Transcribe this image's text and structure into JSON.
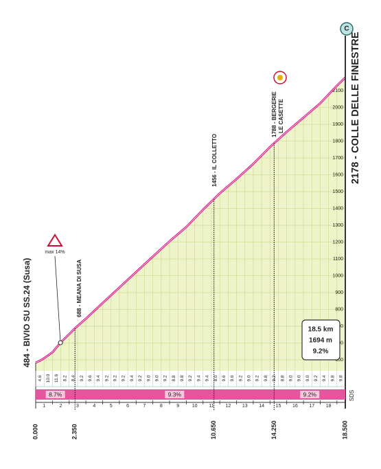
{
  "chart_data": {
    "type": "area",
    "x": [
      0,
      0.25,
      0.5,
      1,
      1.48,
      2.35,
      3,
      4,
      5,
      6,
      7,
      8,
      9,
      10,
      10.65,
      11,
      12,
      13,
      14,
      14.25,
      15,
      16,
      17,
      18,
      18.5
    ],
    "series": [
      {
        "color": "#e0198a",
        "values": [
          484,
          495,
          510,
          545,
          602,
          688,
          745,
          838,
          930,
          1022,
          1114,
          1205,
          1290,
          1393,
          1456,
          1490,
          1575,
          1665,
          1765,
          1788,
          1855,
          1940,
          2025,
          2130,
          2178
        ]
      }
    ],
    "fill": "#eef3c9",
    "xlim": [
      0,
      18.5
    ],
    "xticks": [
      0,
      1,
      2,
      3,
      4,
      5,
      6,
      7,
      8,
      9,
      10,
      11,
      12,
      13,
      14,
      15,
      16,
      17,
      18
    ],
    "ylim": [
      435,
      2200
    ],
    "yticks": [
      500,
      600,
      700,
      800,
      900,
      1000,
      1100,
      1200,
      1300,
      1400,
      1500,
      1600,
      1700,
      1800,
      1900,
      2000,
      2100
    ],
    "waypoints": [
      {
        "label": [
          "484 - BIVIO SU SS.24 (Susa)"
        ],
        "km": {
          "value": 0,
          "label": "0.000"
        }
      },
      {
        "label": [
          "688 - MEANA DI SUSA"
        ],
        "km": {
          "value": 2.35,
          "label": "2.350"
        }
      },
      {
        "label": [
          "1456 - IL COLLETTO"
        ],
        "km": {
          "value": 10.65,
          "label": "10.650"
        }
      },
      {
        "label": [
          "1788 - BERGERIE",
          "LE CASETTE"
        ],
        "km": {
          "value": 14.25,
          "label": "14.250"
        }
      },
      {
        "label": [
          "2178 - COLLE DELLE FINESTRE"
        ],
        "km": {
          "value": 18.5,
          "label": "18.500"
        }
      }
    ],
    "gradients": [
      4.6,
      {
        "value": 10,
        "label": "10.0"
      },
      11.6,
      8.2,
      8.4,
      9.2,
      9.6,
      9.4,
      9.2,
      9.2,
      9.2,
      9.4,
      9.2,
      {
        "value": 9,
        "label": "9.0"
      },
      {
        "value": 9,
        "label": "9.0"
      },
      9.2,
      8.8,
      9.8,
      9.2,
      9.4,
      9.4,
      {
        "value": 8,
        "label": "8.0"
      },
      9.6,
      9.6,
      9.2,
      {
        "value": 9,
        "label": "9.0"
      },
      9.2,
      9.8,
      9.2,
      8.8,
      {
        "value": 9,
        "label": "9.0"
      },
      {
        "value": 9,
        "label": "9.0"
      },
      {
        "value": 9,
        "label": "9.0"
      },
      9.2,
      9.4,
      9.8,
      9.8
    ],
    "sectors": {
      "values": [
        8.7,
        9.3,
        9.2
      ],
      "value_labels": [
        "8.7%",
        "9.3%",
        "9.2%"
      ]
    },
    "max_gradient": "max 14%",
    "summary": [
      "18.5 km",
      "1694 m",
      "9.2%"
    ],
    "finish_icon": "C",
    "credit": "SDS"
  }
}
